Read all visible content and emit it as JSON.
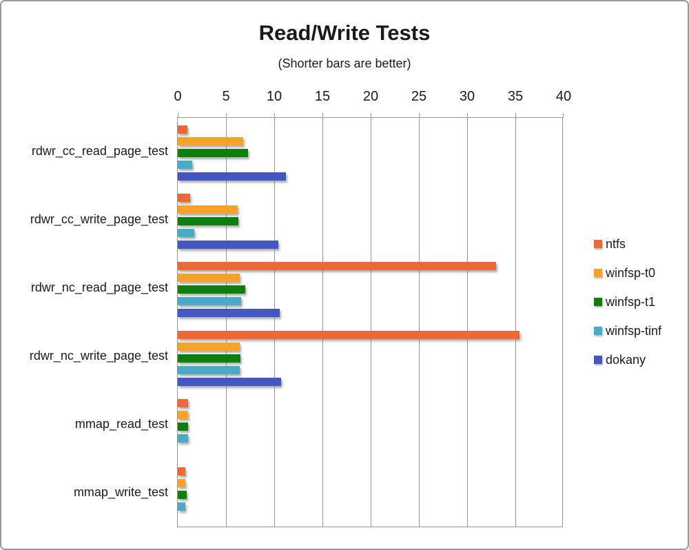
{
  "chart_data": {
    "type": "bar",
    "orientation": "horizontal",
    "title": "Read/Write Tests",
    "subtitle": "(Shorter bars are better)",
    "xlabel": "",
    "ylabel": "",
    "xlim": [
      0,
      40
    ],
    "x_ticks": [
      0,
      5,
      10,
      15,
      20,
      25,
      30,
      35,
      40
    ],
    "grid": "vertical-gray",
    "legend_position": "right",
    "categories": [
      "rdwr_cc_read_page_test",
      "rdwr_cc_write_page_test",
      "rdwr_nc_read_page_test",
      "rdwr_nc_write_page_test",
      "mmap_read_test",
      "mmap_write_test"
    ],
    "series": [
      {
        "name": "ntfs",
        "color": "#EC6837",
        "values": [
          1.0,
          1.3,
          33.0,
          35.4,
          1.1,
          0.8
        ]
      },
      {
        "name": "winfsp-t0",
        "color": "#F7A32B",
        "values": [
          6.8,
          6.2,
          6.4,
          6.4,
          1.1,
          0.8
        ]
      },
      {
        "name": "winfsp-t1",
        "color": "#0E7E0E",
        "values": [
          7.3,
          6.3,
          7.0,
          6.5,
          1.1,
          0.9
        ]
      },
      {
        "name": "winfsp-tinf",
        "color": "#4AABC7",
        "values": [
          1.5,
          1.7,
          6.6,
          6.4,
          1.1,
          0.8
        ]
      },
      {
        "name": "dokany",
        "color": "#4456C0",
        "values": [
          11.2,
          10.4,
          10.6,
          10.7,
          null,
          null
        ]
      }
    ],
    "colors": {
      "grid": "#969696",
      "text": "#1a1a1a",
      "frame_border": "#9a9a9a"
    }
  }
}
